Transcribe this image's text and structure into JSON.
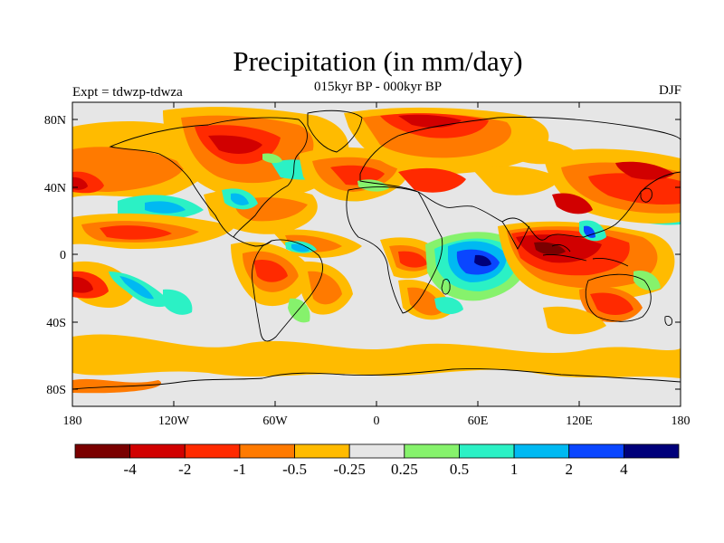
{
  "title": "Precipitation (in mm/day)",
  "subtitle": "015kyr BP - 000kyr BP",
  "experiment_label": "Expt = tdwzp-tdwza",
  "season_label": "DJF",
  "axes": {
    "x_ticks": [
      "180",
      "120W",
      "60W",
      "0",
      "60E",
      "120E",
      "180"
    ],
    "y_ticks": [
      "80N",
      "40N",
      "0",
      "40S",
      "80S"
    ]
  },
  "colorbar": {
    "labels": [
      "-4",
      "-2",
      "-1",
      "-0.5",
      "-0.25",
      "0.25",
      "0.5",
      "1",
      "2",
      "4"
    ],
    "colors": [
      "#7a0000",
      "#d10000",
      "#ff2a00",
      "#ff7a00",
      "#ffbb00",
      "#e6e6e6",
      "#86f26c",
      "#2bf1c5",
      "#00b9f2",
      "#0a46ff",
      "#00007a"
    ]
  }
}
